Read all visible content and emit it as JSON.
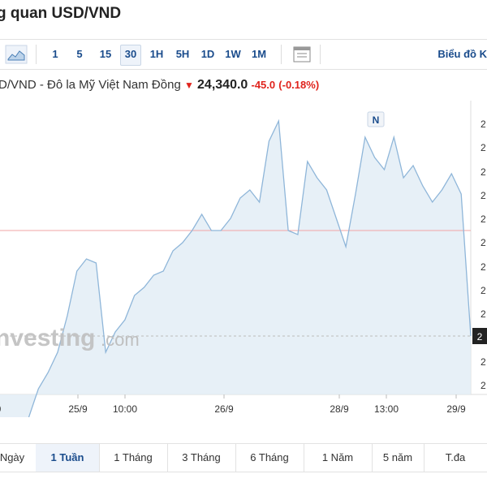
{
  "header": {
    "title": "g quan USD/VND"
  },
  "toolbar": {
    "intervals": [
      "1",
      "5",
      "15",
      "30",
      "1H",
      "5H",
      "1D",
      "1W",
      "1M"
    ],
    "active_interval": "30",
    "right_link": "Biểu đồ K",
    "icons": [
      "area-chart-icon",
      "table-icon"
    ]
  },
  "quote": {
    "name": "D/VND - Đô la Mỹ Việt Nam Đồng",
    "arrow": "▼",
    "price": "24,340.0",
    "change": "-45.0",
    "change_pct": "(-0.18%)"
  },
  "chart": {
    "watermark": "nvesting",
    "watermark_suffix": ".com",
    "marker": "N",
    "y_tick_prefix": [
      "2",
      "2",
      "2",
      "2",
      "2",
      "2",
      "2",
      "2",
      "2",
      "2",
      "2",
      "2"
    ],
    "current_tag": "2",
    "colors": {
      "line": "#8fb6d9",
      "fill": "#e3edf6",
      "ref": "#f2a5a5",
      "current": "#222222"
    }
  },
  "chart_data": {
    "type": "area",
    "x_tick_labels": [
      "0",
      "25/9",
      "10:00",
      "26/9",
      "28/9",
      "13:00",
      "29/9"
    ],
    "values": [
      440,
      430,
      420,
      390,
      355,
      335,
      310,
      265,
      210,
      195,
      200,
      310,
      285,
      270,
      240,
      230,
      215,
      210,
      185,
      175,
      160,
      140,
      160,
      160,
      145,
      120,
      110,
      125,
      50,
      25,
      160,
      165,
      75,
      95,
      110,
      145,
      180,
      115,
      45,
      70,
      85,
      45,
      95,
      80,
      105,
      125,
      110,
      90,
      115,
      290
    ],
    "reference_value": 160,
    "last_value": 290
  },
  "bottom_tabs": {
    "items": [
      "Ngày",
      "1 Tuần",
      "1 Tháng",
      "3 Tháng",
      "6 Tháng",
      "1 Năm",
      "5 năm",
      "T.đa"
    ],
    "active": "1 Tuần"
  }
}
